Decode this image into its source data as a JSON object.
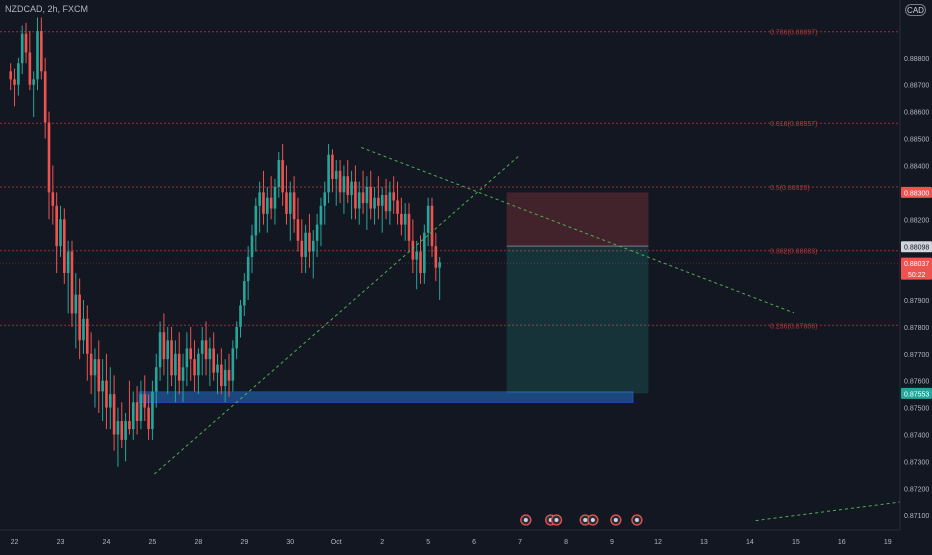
{
  "symbol_title": "NZDCAD, 2h, FXCM",
  "currency_badge": "CAD",
  "colors": {
    "background": "#131722",
    "up": "#26a69a",
    "down": "#ef5350",
    "fib": "#b2343a",
    "trendline": "#4caf50",
    "axis_text": "#b2b5be",
    "support_zone": "#1e4f8f"
  },
  "chart_data": {
    "type": "candlestick",
    "ylim": [
      0.87045,
      0.89015
    ],
    "y_ticks": [
      "0.88800",
      "0.88700",
      "0.88600",
      "0.88500",
      "0.88400",
      "0.88200",
      "0.87900",
      "0.87800",
      "0.87700",
      "0.87600",
      "0.87500",
      "0.87400",
      "0.87300",
      "0.87200",
      "0.87100"
    ],
    "x_ticks": [
      {
        "label": "22",
        "idx": 1
      },
      {
        "label": "23",
        "idx": 13
      },
      {
        "label": "24",
        "idx": 25
      },
      {
        "label": "25",
        "idx": 37
      },
      {
        "label": "28",
        "idx": 49
      },
      {
        "label": "29",
        "idx": 61
      },
      {
        "label": "30",
        "idx": 73
      },
      {
        "label": "Oct",
        "idx": 85
      },
      {
        "label": "2",
        "idx": 97
      },
      {
        "label": "5",
        "idx": 109
      },
      {
        "label": "6",
        "idx": 121
      },
      {
        "label": "7",
        "idx": 133
      },
      {
        "label": "8",
        "idx": 145
      },
      {
        "label": "9",
        "idx": 157
      },
      {
        "label": "12",
        "idx": 169
      },
      {
        "label": "13",
        "idx": 181
      },
      {
        "label": "14",
        "idx": 193
      },
      {
        "label": "15",
        "idx": 205
      },
      {
        "label": "16",
        "idx": 217
      },
      {
        "label": "19",
        "idx": 229
      }
    ],
    "candles": [
      [
        0.8875,
        0.8878,
        0.8868,
        0.8872
      ],
      [
        0.8872,
        0.8876,
        0.8862,
        0.887
      ],
      [
        0.887,
        0.888,
        0.8866,
        0.8878
      ],
      [
        0.8878,
        0.8892,
        0.8874,
        0.8889
      ],
      [
        0.8889,
        0.8893,
        0.8878,
        0.8882
      ],
      [
        0.8882,
        0.889,
        0.8868,
        0.887
      ],
      [
        0.887,
        0.8875,
        0.8858,
        0.8872
      ],
      [
        0.8872,
        0.8895,
        0.8868,
        0.889
      ],
      [
        0.889,
        0.8895,
        0.8872,
        0.8875
      ],
      [
        0.8875,
        0.888,
        0.885,
        0.8856
      ],
      [
        0.8856,
        0.886,
        0.882,
        0.883
      ],
      [
        0.883,
        0.884,
        0.8818,
        0.8825
      ],
      [
        0.8825,
        0.883,
        0.88,
        0.881
      ],
      [
        0.881,
        0.8825,
        0.8806,
        0.882
      ],
      [
        0.882,
        0.8824,
        0.8796,
        0.88
      ],
      [
        0.88,
        0.8812,
        0.8785,
        0.8808
      ],
      [
        0.8808,
        0.8812,
        0.878,
        0.8785
      ],
      [
        0.8785,
        0.88,
        0.8772,
        0.8792
      ],
      [
        0.8792,
        0.8798,
        0.8768,
        0.8775
      ],
      [
        0.8775,
        0.879,
        0.877,
        0.8783
      ],
      [
        0.8783,
        0.8788,
        0.876,
        0.877
      ],
      [
        0.877,
        0.8778,
        0.8755,
        0.8762
      ],
      [
        0.8762,
        0.8772,
        0.875,
        0.8768
      ],
      [
        0.8768,
        0.8775,
        0.8748,
        0.8756
      ],
      [
        0.8756,
        0.8768,
        0.8745,
        0.876
      ],
      [
        0.876,
        0.877,
        0.8742,
        0.875
      ],
      [
        0.875,
        0.8765,
        0.8742,
        0.8755
      ],
      [
        0.8755,
        0.8762,
        0.8734,
        0.874
      ],
      [
        0.874,
        0.875,
        0.8728,
        0.8745
      ],
      [
        0.8745,
        0.8752,
        0.8735,
        0.8738
      ],
      [
        0.8738,
        0.8748,
        0.873,
        0.8745
      ],
      [
        0.8745,
        0.876,
        0.874,
        0.8742
      ],
      [
        0.8742,
        0.8756,
        0.8738,
        0.8752
      ],
      [
        0.8752,
        0.8758,
        0.874,
        0.8745
      ],
      [
        0.8745,
        0.876,
        0.8742,
        0.8755
      ],
      [
        0.8755,
        0.8762,
        0.8745,
        0.875
      ],
      [
        0.875,
        0.8755,
        0.8738,
        0.8742
      ],
      [
        0.8742,
        0.876,
        0.8738,
        0.8756
      ],
      [
        0.8756,
        0.877,
        0.875,
        0.8765
      ],
      [
        0.8765,
        0.8782,
        0.876,
        0.8778
      ],
      [
        0.8778,
        0.8785,
        0.8762,
        0.8768
      ],
      [
        0.8768,
        0.878,
        0.8755,
        0.8775
      ],
      [
        0.8775,
        0.878,
        0.8758,
        0.8762
      ],
      [
        0.8762,
        0.8775,
        0.8752,
        0.877
      ],
      [
        0.877,
        0.8778,
        0.8755,
        0.876
      ],
      [
        0.876,
        0.877,
        0.8752,
        0.8765
      ],
      [
        0.8765,
        0.8778,
        0.8758,
        0.8772
      ],
      [
        0.8772,
        0.878,
        0.876,
        0.8768
      ],
      [
        0.8768,
        0.8775,
        0.8756,
        0.8762
      ],
      [
        0.8762,
        0.8772,
        0.8755,
        0.877
      ],
      [
        0.877,
        0.878,
        0.8762,
        0.8775
      ],
      [
        0.8775,
        0.8782,
        0.8762,
        0.8768
      ],
      [
        0.8768,
        0.8776,
        0.8758,
        0.8772
      ],
      [
        0.8772,
        0.8778,
        0.876,
        0.8763
      ],
      [
        0.8763,
        0.877,
        0.8755,
        0.8766
      ],
      [
        0.8766,
        0.8772,
        0.8755,
        0.8758
      ],
      [
        0.8758,
        0.8768,
        0.8752,
        0.8764
      ],
      [
        0.8764,
        0.877,
        0.8754,
        0.876
      ],
      [
        0.876,
        0.8775,
        0.8756,
        0.8772
      ],
      [
        0.8772,
        0.8782,
        0.8768,
        0.878
      ],
      [
        0.878,
        0.879,
        0.8776,
        0.8788
      ],
      [
        0.8788,
        0.88,
        0.8784,
        0.8797
      ],
      [
        0.8797,
        0.881,
        0.879,
        0.8806
      ],
      [
        0.8806,
        0.8818,
        0.88,
        0.8814
      ],
      [
        0.8814,
        0.8828,
        0.8808,
        0.8825
      ],
      [
        0.8825,
        0.8834,
        0.8815,
        0.883
      ],
      [
        0.883,
        0.8838,
        0.8818,
        0.8822
      ],
      [
        0.8822,
        0.8832,
        0.8815,
        0.8828
      ],
      [
        0.8828,
        0.8836,
        0.882,
        0.8824
      ],
      [
        0.8824,
        0.8835,
        0.8818,
        0.8832
      ],
      [
        0.8832,
        0.8845,
        0.8828,
        0.8842
      ],
      [
        0.8842,
        0.8848,
        0.8825,
        0.883
      ],
      [
        0.883,
        0.884,
        0.8818,
        0.8822
      ],
      [
        0.8822,
        0.8834,
        0.8812,
        0.883
      ],
      [
        0.883,
        0.8836,
        0.8815,
        0.882
      ],
      [
        0.882,
        0.8828,
        0.8808,
        0.8812
      ],
      [
        0.8812,
        0.882,
        0.88,
        0.8806
      ],
      [
        0.8806,
        0.8818,
        0.88,
        0.8815
      ],
      [
        0.8815,
        0.8822,
        0.8802,
        0.8808
      ],
      [
        0.8808,
        0.8816,
        0.8798,
        0.8812
      ],
      [
        0.8812,
        0.8822,
        0.8806,
        0.8818
      ],
      [
        0.8818,
        0.8828,
        0.881,
        0.8825
      ],
      [
        0.8825,
        0.8834,
        0.8818,
        0.883
      ],
      [
        0.883,
        0.8848,
        0.8826,
        0.8844
      ],
      [
        0.8844,
        0.8846,
        0.883,
        0.8835
      ],
      [
        0.8835,
        0.8842,
        0.8825,
        0.8838
      ],
      [
        0.8838,
        0.8842,
        0.8826,
        0.883
      ],
      [
        0.883,
        0.884,
        0.8822,
        0.8836
      ],
      [
        0.8836,
        0.8842,
        0.8826,
        0.8829
      ],
      [
        0.8829,
        0.8838,
        0.882,
        0.8834
      ],
      [
        0.8834,
        0.884,
        0.882,
        0.8824
      ],
      [
        0.8824,
        0.8834,
        0.8818,
        0.883
      ],
      [
        0.883,
        0.8838,
        0.8822,
        0.8826
      ],
      [
        0.8826,
        0.8836,
        0.8816,
        0.8832
      ],
      [
        0.8832,
        0.8838,
        0.882,
        0.8824
      ],
      [
        0.8824,
        0.8832,
        0.8818,
        0.8828
      ],
      [
        0.8828,
        0.8836,
        0.882,
        0.8825
      ],
      [
        0.8825,
        0.8832,
        0.8815,
        0.8829
      ],
      [
        0.8829,
        0.8835,
        0.882,
        0.8823
      ],
      [
        0.8823,
        0.8834,
        0.8818,
        0.883
      ],
      [
        0.883,
        0.8836,
        0.8822,
        0.8827
      ],
      [
        0.8827,
        0.8834,
        0.8818,
        0.8822
      ],
      [
        0.8822,
        0.8828,
        0.8814,
        0.8818
      ],
      [
        0.8818,
        0.8826,
        0.8812,
        0.8822
      ],
      [
        0.8822,
        0.8826,
        0.8808,
        0.8812
      ],
      [
        0.8812,
        0.882,
        0.88,
        0.8805
      ],
      [
        0.8805,
        0.8812,
        0.8794,
        0.8808
      ],
      [
        0.8808,
        0.8814,
        0.8796,
        0.88
      ],
      [
        0.88,
        0.8818,
        0.8796,
        0.8815
      ],
      [
        0.8815,
        0.8828,
        0.881,
        0.8825
      ],
      [
        0.8825,
        0.8828,
        0.8806,
        0.881
      ],
      [
        0.881,
        0.8815,
        0.8797,
        0.8802
      ],
      [
        0.8802,
        0.8806,
        0.879,
        0.8804
      ]
    ],
    "fib_levels": [
      {
        "label": "0.786(0.88897)",
        "price": 0.88897
      },
      {
        "label": "0.618(0.88557)",
        "price": 0.88557
      },
      {
        "label": "0.5(0.88320)",
        "price": 0.8832
      },
      {
        "label": "0.382(0.88083)",
        "price": 0.88083
      },
      {
        "label": "0.236(0.87806)",
        "price": 0.87806
      }
    ],
    "trendlines": [
      {
        "from": [
          37.5,
          0.87253
        ],
        "to": [
          132.5,
          0.88433
        ]
      },
      {
        "from": [
          91.5,
          0.88467
        ],
        "to": [
          204.5,
          0.87852
        ]
      },
      {
        "from": [
          194.5,
          0.8708
        ],
        "to": [
          234.5,
          0.87153
        ]
      }
    ],
    "support_zone": {
      "x": [
        33.5,
        162.5
      ],
      "top": 0.87555,
      "bottom": 0.8753
    },
    "position": {
      "x": [
        129.5,
        166.5
      ],
      "entry": 0.881,
      "stop": 0.883,
      "target": 0.87553
    },
    "current_price": 0.88037,
    "price_labels": [
      {
        "text": "0.88300",
        "price": 0.883,
        "bg": "#ef5350"
      },
      {
        "text": "0.88098",
        "price": 0.88098,
        "bg": "#d1d4dc",
        "fg": "#131722"
      },
      {
        "text": "0.88037",
        "price": 0.88037,
        "bg": "#ef5350",
        "extra": "50:22"
      },
      {
        "text": "0.87553",
        "price": 0.87553,
        "bg": "#26a69a"
      }
    ],
    "event_markers": [
      134.5,
      141,
      142.5,
      150,
      152,
      158,
      163.5
    ]
  }
}
